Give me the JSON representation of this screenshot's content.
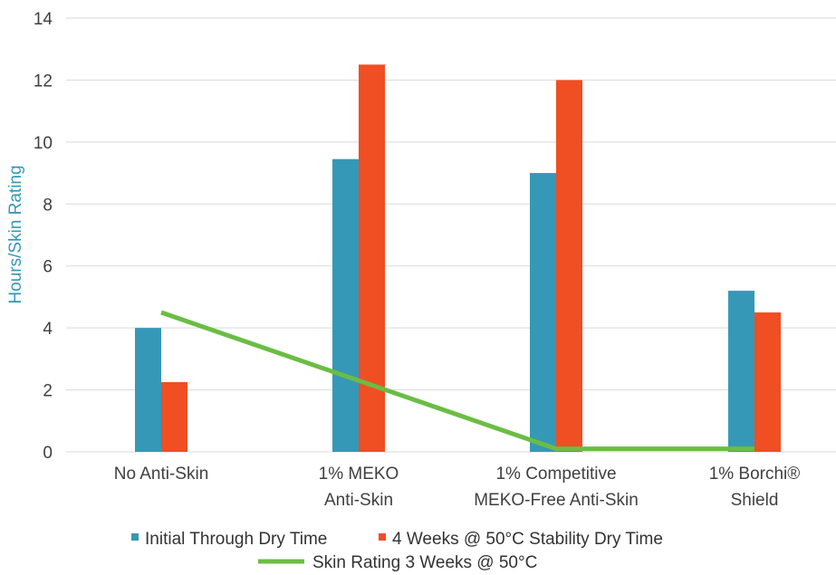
{
  "chart_data": {
    "type": "bar",
    "title": "",
    "xlabel": "",
    "ylabel": "Hours/Skin Rating",
    "ylim": [
      0,
      14
    ],
    "yticks": [
      0,
      2,
      4,
      6,
      8,
      10,
      12,
      14
    ],
    "grid": true,
    "legend_position": "bottom",
    "categories": [
      [
        "No Anti-Skin"
      ],
      [
        "1% MEKO",
        "Anti-Skin"
      ],
      [
        "1% Competitive",
        "MEKO-Free Anti-Skin"
      ],
      [
        "1% Borchi®",
        "Shield"
      ]
    ],
    "series": [
      {
        "name": "Initial Through Dry Time",
        "kind": "bar",
        "color": "#3598b7",
        "values": [
          4.0,
          9.45,
          9.0,
          5.2
        ]
      },
      {
        "name": "4 Weeks @ 50°C Stability Dry Time",
        "kind": "bar",
        "color": "#f04e23",
        "values": [
          2.25,
          12.5,
          12.0,
          4.5
        ]
      },
      {
        "name": "Skin Rating 3 Weeks @ 50°C",
        "kind": "line",
        "color": "#6bbd45",
        "values": [
          4.5,
          2.3,
          0.1,
          0.1
        ]
      }
    ],
    "colors": {
      "ylabel": "#3598b7",
      "grid": "#d9d9d9",
      "text": "#404040"
    }
  }
}
